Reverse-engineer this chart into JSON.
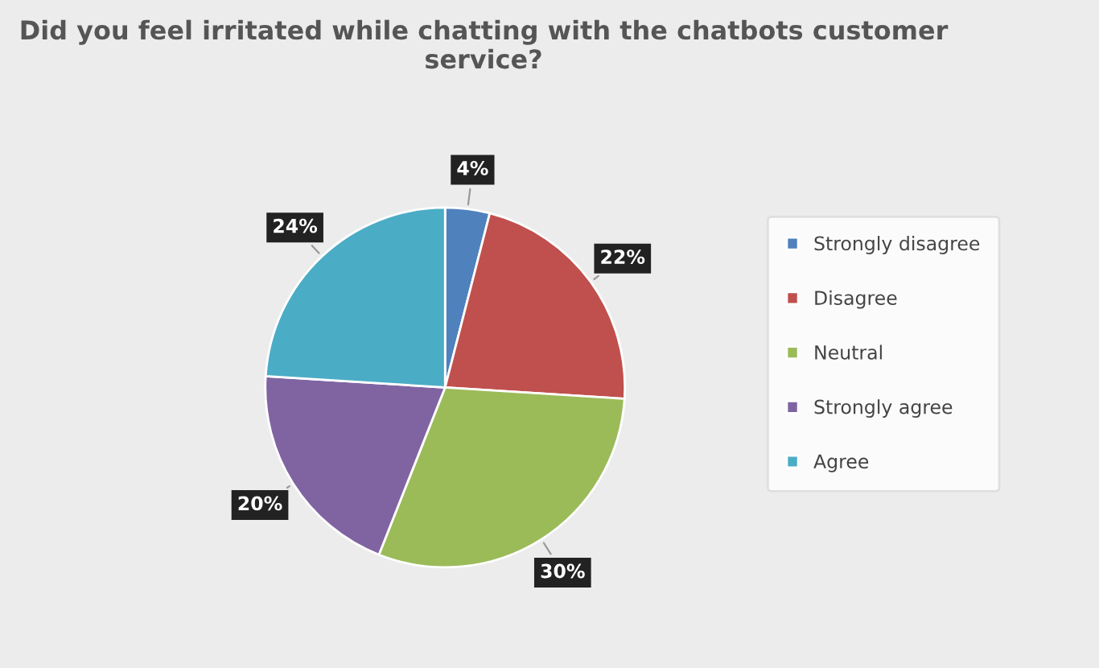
{
  "chart_data": {
    "type": "pie",
    "title": "Did you feel irritated while chatting with the chatbots customer service?",
    "categories": [
      "Strongly disagree",
      "Disagree",
      "Neutral",
      "Strongly agree",
      "Agree"
    ],
    "values": [
      4,
      22,
      30,
      20,
      24
    ],
    "value_labels": [
      "4%",
      "22%",
      "30%",
      "20%",
      "24%"
    ],
    "colors": [
      "#4f81bd",
      "#c0504d",
      "#9bbb59",
      "#8064a2",
      "#4bacc6"
    ],
    "legend": "right"
  }
}
